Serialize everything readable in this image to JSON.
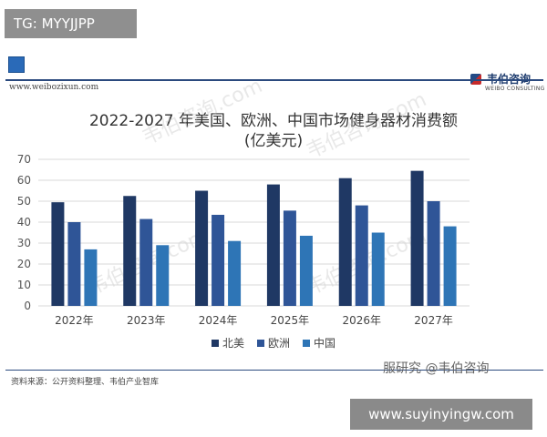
{
  "tag": "TG: MYYJJPP",
  "header": {
    "website": "www.weibozixun.com",
    "brand_name": "韦伯咨询",
    "brand_sub": "WEIBO CONSULTING"
  },
  "watermark_text": "韦伯咨询.com",
  "chart_data": {
    "type": "bar",
    "title_line1": "2022-2027 年美国、欧洲、中国市场健身器材消费额",
    "title_line2": "(亿美元)",
    "categories": [
      "2022年",
      "2023年",
      "2024年",
      "2025年",
      "2026年",
      "2027年"
    ],
    "series": [
      {
        "name": "北美",
        "color": "#1f3864",
        "values": [
          49.5,
          52.5,
          55,
          58,
          61,
          64.5
        ]
      },
      {
        "name": "欧洲",
        "color": "#2f5597",
        "values": [
          40,
          41.5,
          43.5,
          45.5,
          48,
          50
        ]
      },
      {
        "name": "中国",
        "color": "#2e75b6",
        "values": [
          27,
          29,
          31,
          33.5,
          35,
          38
        ]
      }
    ],
    "ylim": [
      0,
      70
    ],
    "yticks": [
      0,
      10,
      20,
      30,
      40,
      50,
      60,
      70
    ],
    "grid": true,
    "legend_position": "bottom"
  },
  "footer": {
    "source": "资料来源：公开资料整理、韦伯产业智库",
    "weibo_note": "服研究 @韦伯咨询",
    "site_box": "www.suyinyingw.com"
  }
}
